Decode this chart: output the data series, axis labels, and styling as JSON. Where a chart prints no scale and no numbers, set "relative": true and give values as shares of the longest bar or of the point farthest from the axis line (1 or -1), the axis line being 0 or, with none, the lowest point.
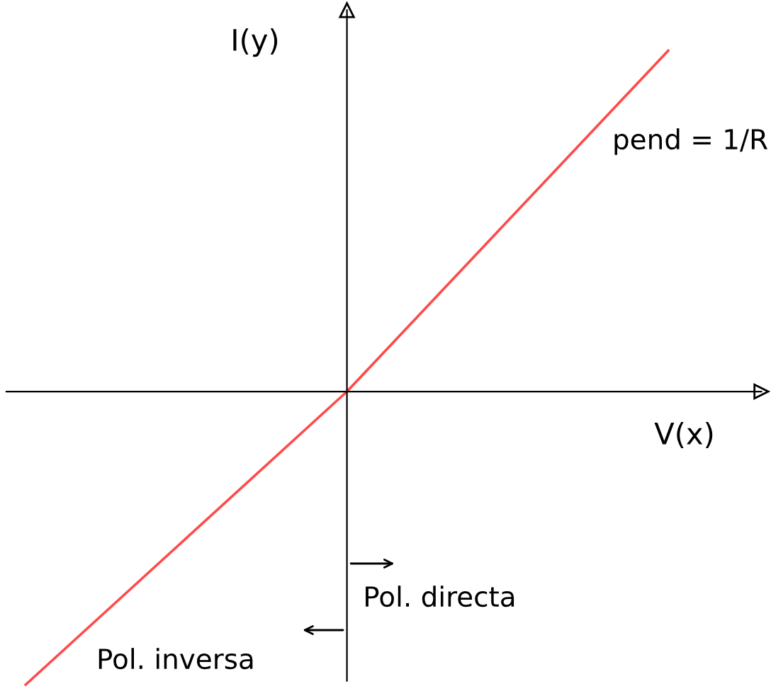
{
  "chart_data": {
    "type": "line",
    "relative": true,
    "xlabel": "V(x)",
    "ylabel": "I(y)",
    "categories": [
      null,
      null,
      null
    ],
    "series": [
      {
        "color": "#ff4a4a",
        "values": [
          -0.86,
          0,
          1.0
        ]
      }
    ],
    "annotations": [
      "pend = 1/R",
      "Pol. directa",
      "Pol. inversa"
    ],
    "legend": false,
    "marker": "none",
    "line_style": "solid"
  }
}
